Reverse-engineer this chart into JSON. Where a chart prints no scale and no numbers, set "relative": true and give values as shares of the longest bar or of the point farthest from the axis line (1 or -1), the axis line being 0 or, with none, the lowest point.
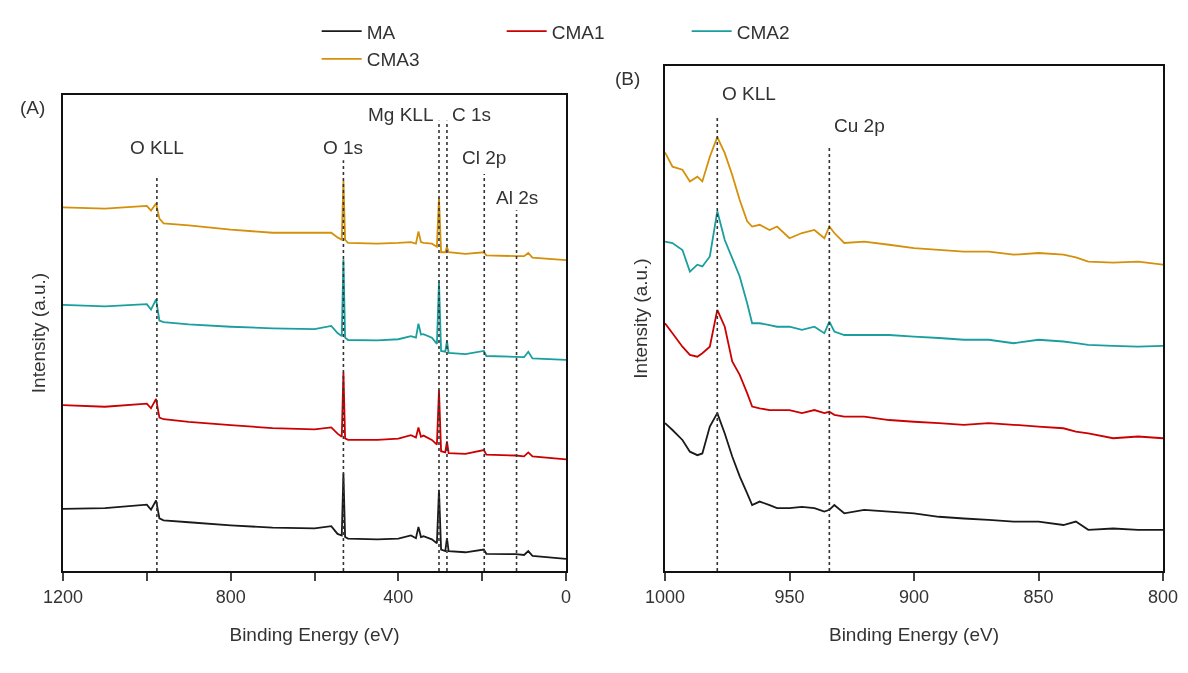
{
  "chart_data": [
    {
      "type": "line",
      "relative": true,
      "xlabel": "Binding Energy (eV)",
      "ylabel": "Intensity (a.u.)",
      "annotations": [
        "(A)"
      ],
      "legend": "top",
      "grid": false,
      "xlim": [
        1200,
        0
      ],
      "xticks": [
        1200,
        {
          "value": 1000,
          "label": null
        },
        800,
        {
          "value": 600,
          "label": null
        },
        400,
        {
          "value": 200,
          "label": null
        },
        0
      ],
      "x": [
        1200,
        1100,
        1000,
        990,
        978,
        970,
        960,
        900,
        800,
        700,
        600,
        560,
        545,
        535,
        531,
        527,
        520,
        450,
        400,
        370,
        358,
        352,
        346,
        340,
        320,
        308,
        303,
        298,
        288,
        284,
        280,
        240,
        196,
        190,
        120,
        100,
        90,
        80,
        0
      ],
      "series": [
        {
          "name": "MA",
          "color": "#1a1a1a",
          "values": [
            0.159,
            0.161,
            0.17,
            0.157,
            0.181,
            0.135,
            0.13,
            0.125,
            0.117,
            0.111,
            0.109,
            0.115,
            0.095,
            0.091,
            0.25,
            0.087,
            0.083,
            0.081,
            0.083,
            0.091,
            0.084,
            0.113,
            0.087,
            0.089,
            0.081,
            0.071,
            0.208,
            0.055,
            0.051,
            0.084,
            0.051,
            0.048,
            0.055,
            0.044,
            0.043,
            0.041,
            0.051,
            0.039,
            0.031
          ]
        },
        {
          "name": "CMA1",
          "color": "#cc0000",
          "values": [
            0.425,
            0.421,
            0.429,
            0.417,
            0.441,
            0.393,
            0.389,
            0.382,
            0.374,
            0.366,
            0.363,
            0.368,
            0.352,
            0.344,
            0.509,
            0.34,
            0.336,
            0.336,
            0.339,
            0.348,
            0.342,
            0.368,
            0.344,
            0.347,
            0.336,
            0.324,
            0.463,
            0.307,
            0.304,
            0.332,
            0.302,
            0.3,
            0.31,
            0.298,
            0.296,
            0.294,
            0.304,
            0.294,
            0.286
          ]
        },
        {
          "name": "CMA2",
          "color": "#1a9e9e",
          "values": [
            0.682,
            0.678,
            0.684,
            0.67,
            0.696,
            0.642,
            0.638,
            0.632,
            0.626,
            0.622,
            0.62,
            0.628,
            0.61,
            0.602,
            0.799,
            0.598,
            0.592,
            0.591,
            0.594,
            0.602,
            0.598,
            0.634,
            0.606,
            0.607,
            0.598,
            0.582,
            0.741,
            0.564,
            0.562,
            0.59,
            0.559,
            0.556,
            0.564,
            0.551,
            0.549,
            0.548,
            0.562,
            0.545,
            0.541
          ]
        },
        {
          "name": "CMA3",
          "color": "#d4900a",
          "values": [
            0.932,
            0.929,
            0.936,
            0.924,
            0.942,
            0.903,
            0.891,
            0.886,
            0.875,
            0.867,
            0.867,
            0.867,
            0.855,
            0.849,
            1.0,
            0.849,
            0.841,
            0.839,
            0.841,
            0.843,
            0.839,
            0.87,
            0.843,
            0.841,
            0.839,
            0.831,
            0.957,
            0.817,
            0.817,
            0.831,
            0.817,
            0.813,
            0.817,
            0.809,
            0.807,
            0.807,
            0.815,
            0.803,
            0.797
          ]
        }
      ],
      "ref_lines": [
        {
          "axis": "x",
          "value": 976,
          "label": "O KLL",
          "color": "#333333",
          "line_style": "dotted"
        },
        {
          "axis": "x",
          "value": 531,
          "label": "O 1s",
          "color": "#333333",
          "line_style": "dotted"
        },
        {
          "axis": "x",
          "value": 303,
          "label": "Mg KLL",
          "color": "#333333",
          "line_style": "dotted"
        },
        {
          "axis": "x",
          "value": 284,
          "label": "C 1s",
          "color": "#333333",
          "line_style": "dotted"
        },
        {
          "axis": "x",
          "value": 195,
          "label": "Cl 2p",
          "color": "#333333",
          "line_style": "dotted"
        },
        {
          "axis": "x",
          "value": 118,
          "label": "Al 2s",
          "color": "#333333",
          "line_style": "dotted"
        }
      ]
    },
    {
      "type": "line",
      "relative": true,
      "xlabel": "Binding Energy (eV)",
      "ylabel": "Intensity (a.u.)",
      "annotations": [
        "(B)"
      ],
      "grid": false,
      "xlim": [
        1000,
        800
      ],
      "xticks": [
        1000,
        950,
        900,
        850,
        800
      ],
      "x": [
        1000,
        997,
        993,
        990,
        987,
        985,
        982,
        979,
        976,
        973,
        970,
        967,
        965,
        962,
        958,
        955,
        950,
        945,
        940,
        936,
        934,
        932,
        928,
        920,
        910,
        900,
        890,
        880,
        870,
        860,
        850,
        840,
        835,
        830,
        820,
        810,
        800
      ],
      "series": [
        {
          "color": "#1a1a1a",
          "values": [
            0.341,
            0.325,
            0.302,
            0.275,
            0.267,
            0.271,
            0.333,
            0.364,
            0.317,
            0.264,
            0.218,
            0.179,
            0.152,
            0.16,
            0.152,
            0.145,
            0.145,
            0.148,
            0.145,
            0.137,
            0.141,
            0.152,
            0.133,
            0.141,
            0.137,
            0.133,
            0.125,
            0.121,
            0.118,
            0.114,
            0.114,
            0.106,
            0.114,
            0.095,
            0.098,
            0.095,
            0.095
          ]
        },
        {
          "color": "#cc0000",
          "values": [
            0.571,
            0.548,
            0.517,
            0.498,
            0.494,
            0.502,
            0.517,
            0.602,
            0.563,
            0.483,
            0.452,
            0.41,
            0.379,
            0.375,
            0.371,
            0.371,
            0.371,
            0.364,
            0.371,
            0.364,
            0.367,
            0.36,
            0.356,
            0.356,
            0.348,
            0.344,
            0.341,
            0.337,
            0.341,
            0.337,
            0.333,
            0.329,
            0.321,
            0.317,
            0.306,
            0.31,
            0.306
          ]
        },
        {
          "color": "#1a9e9e",
          "values": [
            0.759,
            0.756,
            0.74,
            0.69,
            0.706,
            0.702,
            0.725,
            0.829,
            0.763,
            0.721,
            0.679,
            0.617,
            0.571,
            0.571,
            0.567,
            0.563,
            0.563,
            0.556,
            0.563,
            0.548,
            0.575,
            0.552,
            0.544,
            0.544,
            0.544,
            0.54,
            0.537,
            0.533,
            0.533,
            0.525,
            0.533,
            0.529,
            0.525,
            0.521,
            0.519,
            0.517,
            0.519
          ]
        },
        {
          "color": "#d4900a",
          "values": [
            0.965,
            0.932,
            0.925,
            0.898,
            0.909,
            0.898,
            0.955,
            1.0,
            0.963,
            0.913,
            0.855,
            0.806,
            0.794,
            0.798,
            0.786,
            0.794,
            0.767,
            0.779,
            0.786,
            0.767,
            0.794,
            0.779,
            0.756,
            0.759,
            0.752,
            0.744,
            0.74,
            0.736,
            0.736,
            0.729,
            0.733,
            0.729,
            0.723,
            0.713,
            0.711,
            0.713,
            0.706
          ]
        }
      ],
      "ref_lines": [
        {
          "axis": "x",
          "value": 979,
          "label": "O KLL",
          "color": "#333333",
          "line_style": "dotted"
        },
        {
          "axis": "x",
          "value": 934,
          "label": "Cu 2p",
          "color": "#333333",
          "line_style": "dotted"
        }
      ]
    }
  ]
}
